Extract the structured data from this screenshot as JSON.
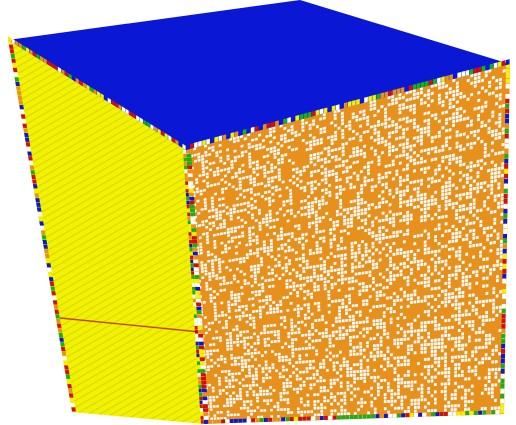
{
  "image": {
    "subject": "scrambled-cube",
    "colors": {
      "top_face": "#0a18d6",
      "left_face": "#f2f200",
      "left_face_shade": "#c8c800",
      "right_face_primary": "#e8901c",
      "right_face_secondary": "#ffffff",
      "edge_stickers": [
        "#d01010",
        "#0a18d6",
        "#18b018",
        "#f2f200",
        "#e8901c",
        "#ffffff"
      ],
      "background": "#ffffff"
    }
  }
}
